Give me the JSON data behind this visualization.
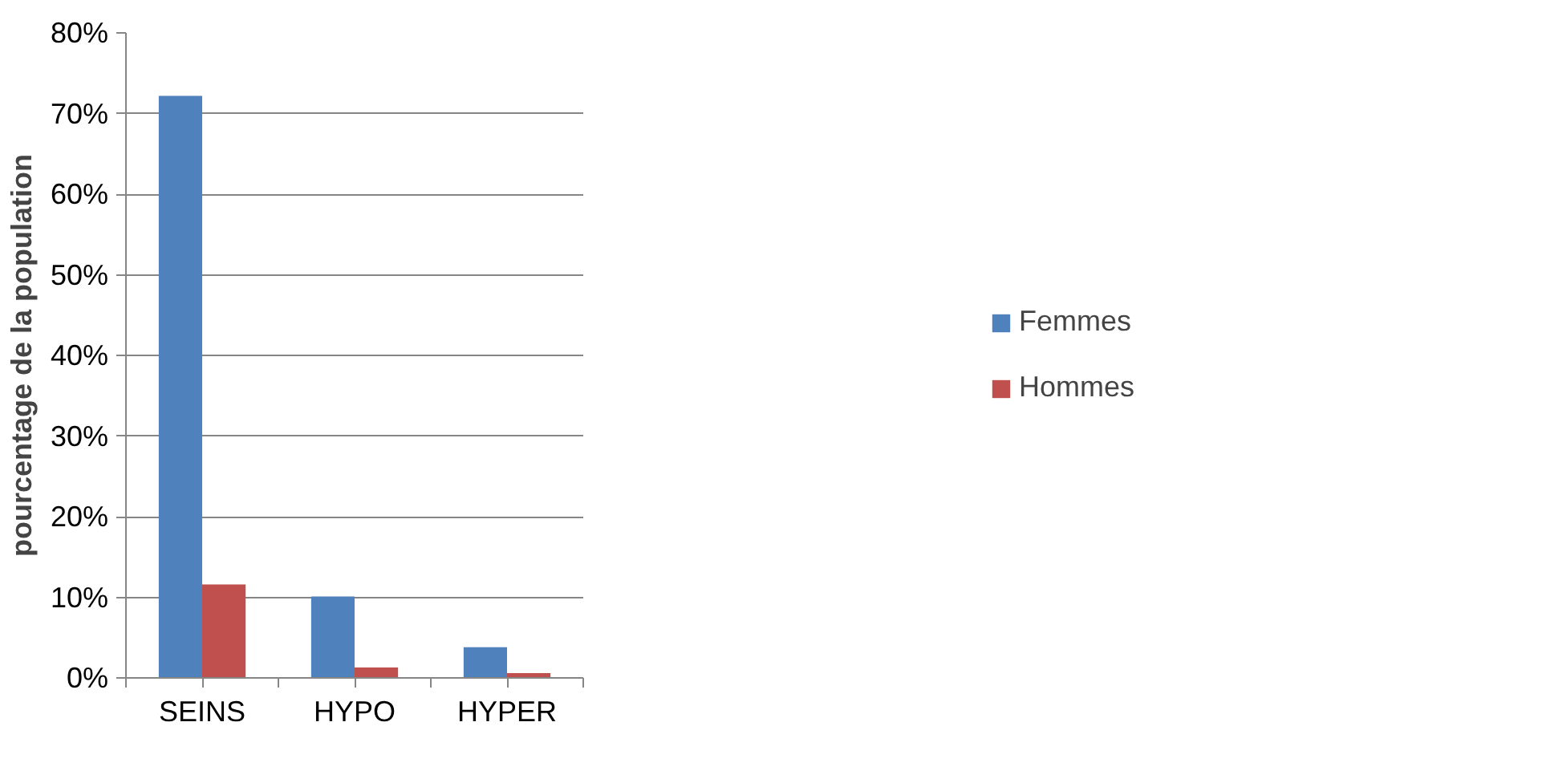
{
  "chart_data": {
    "type": "bar",
    "ylabel": "pourcentage de la population",
    "categories": [
      "SEINS",
      "HYPO",
      "HYPER"
    ],
    "series": [
      {
        "name": "Femmes",
        "color": "#4f81bd",
        "values": [
          72.2,
          10.1,
          3.8
        ]
      },
      {
        "name": "Hommes",
        "color": "#c0504d",
        "values": [
          11.6,
          1.3,
          0.6
        ]
      }
    ],
    "ylim": [
      0,
      80
    ],
    "yticks": [
      {
        "value": 0,
        "label": "0%"
      },
      {
        "value": 10,
        "label": "10%"
      },
      {
        "value": 20,
        "label": "20%"
      },
      {
        "value": 30,
        "label": "30%"
      },
      {
        "value": 40,
        "label": "40%"
      },
      {
        "value": 50,
        "label": "50%"
      },
      {
        "value": 60,
        "label": "60%"
      },
      {
        "value": 70,
        "label": "70%"
      },
      {
        "value": 80,
        "label": "80%"
      }
    ],
    "grid": "y",
    "legend": "right"
  }
}
